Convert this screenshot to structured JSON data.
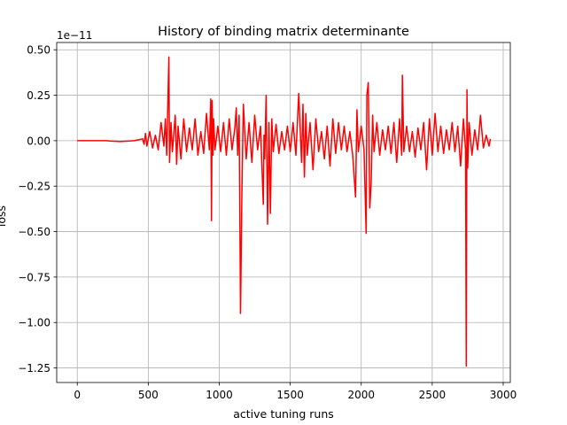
{
  "chart_data": {
    "type": "line",
    "title": "History of binding matrix determinante",
    "xlabel": "active tuning runs",
    "ylabel": "loss",
    "y_offset_label": "1e−11",
    "xlim": [
      -145,
      3050
    ],
    "ylim": [
      -1.33,
      0.54
    ],
    "grid": true,
    "line_color": "#ff0000",
    "x_ticks": [
      {
        "value": 0,
        "label": "0"
      },
      {
        "value": 500,
        "label": "500"
      },
      {
        "value": 1000,
        "label": "1000"
      },
      {
        "value": 1500,
        "label": "1500"
      },
      {
        "value": 2000,
        "label": "2000"
      },
      {
        "value": 2500,
        "label": "2500"
      },
      {
        "value": 3000,
        "label": "3000"
      }
    ],
    "y_ticks": [
      {
        "value": 0.5,
        "label": "0.50"
      },
      {
        "value": 0.25,
        "label": "0.25"
      },
      {
        "value": 0.0,
        "label": "0.00"
      },
      {
        "value": -0.25,
        "label": "−0.25"
      },
      {
        "value": -0.5,
        "label": "−0.50"
      },
      {
        "value": -0.75,
        "label": "−0.75"
      },
      {
        "value": -1.0,
        "label": "−1.00"
      },
      {
        "value": -1.25,
        "label": "−1.25"
      }
    ],
    "series": [
      {
        "x": [
          0,
          100,
          200,
          300,
          400,
          460,
          470,
          480,
          490,
          510,
          530,
          550,
          570,
          590,
          610,
          620,
          630,
          640,
          645,
          650,
          660,
          670,
          690,
          700,
          710,
          730,
          750,
          770,
          790,
          810,
          830,
          850,
          870,
          890,
          910,
          930,
          940,
          945,
          950,
          955,
          960,
          970,
          990,
          1010,
          1030,
          1050,
          1070,
          1090,
          1110,
          1120,
          1130,
          1140,
          1150,
          1160,
          1170,
          1190,
          1210,
          1230,
          1250,
          1270,
          1290,
          1310,
          1315,
          1320,
          1330,
          1340,
          1350,
          1360,
          1370,
          1380,
          1400,
          1420,
          1440,
          1460,
          1480,
          1500,
          1520,
          1540,
          1560,
          1580,
          1590,
          1600,
          1610,
          1620,
          1640,
          1660,
          1680,
          1700,
          1720,
          1740,
          1760,
          1780,
          1800,
          1820,
          1840,
          1860,
          1880,
          1900,
          1920,
          1940,
          1960,
          1970,
          1980,
          2000,
          2020,
          2035,
          2040,
          2050,
          2060,
          2070,
          2080,
          2090,
          2110,
          2130,
          2150,
          2170,
          2190,
          2210,
          2230,
          2250,
          2270,
          2285,
          2290,
          2300,
          2320,
          2340,
          2360,
          2380,
          2400,
          2420,
          2440,
          2460,
          2480,
          2500,
          2520,
          2540,
          2560,
          2580,
          2600,
          2620,
          2640,
          2660,
          2680,
          2700,
          2720,
          2735,
          2740,
          2745,
          2750,
          2760,
          2780,
          2800,
          2820,
          2840,
          2860,
          2880,
          2900,
          2910
        ],
        "y": [
          0.0,
          0.0,
          0.0,
          -0.005,
          0.0,
          0.01,
          -0.02,
          0.04,
          -0.03,
          0.05,
          -0.04,
          0.03,
          -0.05,
          0.1,
          -0.03,
          0.12,
          -0.08,
          0.28,
          0.46,
          -0.12,
          0.1,
          -0.06,
          0.14,
          -0.13,
          0.08,
          -0.1,
          0.12,
          -0.06,
          0.07,
          -0.05,
          0.12,
          -0.08,
          0.05,
          -0.07,
          0.15,
          -0.05,
          0.23,
          -0.44,
          0.22,
          -0.08,
          0.12,
          -0.05,
          0.08,
          -0.06,
          0.1,
          -0.08,
          0.12,
          -0.05,
          0.07,
          0.18,
          -0.08,
          0.14,
          -0.95,
          -0.26,
          0.2,
          -0.1,
          0.1,
          -0.12,
          0.14,
          -0.05,
          0.08,
          -0.35,
          0.03,
          -0.1,
          0.25,
          -0.46,
          0.1,
          -0.4,
          0.12,
          -0.06,
          0.09,
          -0.07,
          0.05,
          -0.05,
          0.08,
          -0.06,
          0.1,
          -0.08,
          0.26,
          -0.12,
          0.2,
          -0.2,
          0.15,
          -0.08,
          0.1,
          -0.16,
          0.12,
          -0.06,
          0.05,
          -0.1,
          0.08,
          -0.14,
          0.12,
          -0.07,
          0.1,
          -0.05,
          0.08,
          -0.06,
          0.05,
          -0.08,
          -0.31,
          0.17,
          -0.06,
          0.08,
          -0.05,
          -0.51,
          0.25,
          0.32,
          -0.37,
          -0.23,
          0.14,
          -0.06,
          0.1,
          -0.08,
          0.06,
          -0.05,
          0.08,
          -0.07,
          0.1,
          -0.12,
          0.12,
          -0.08,
          0.36,
          -0.06,
          0.08,
          -0.06,
          0.05,
          -0.09,
          0.07,
          -0.05,
          0.1,
          -0.16,
          0.12,
          -0.08,
          0.15,
          -0.06,
          0.08,
          -0.07,
          0.06,
          -0.05,
          0.1,
          -0.06,
          0.08,
          -0.14,
          0.12,
          -0.05,
          -1.24,
          0.28,
          -0.15,
          0.1,
          -0.08,
          0.06,
          -0.05,
          0.14,
          -0.04,
          0.03,
          -0.03,
          0.01
        ]
      }
    ]
  }
}
